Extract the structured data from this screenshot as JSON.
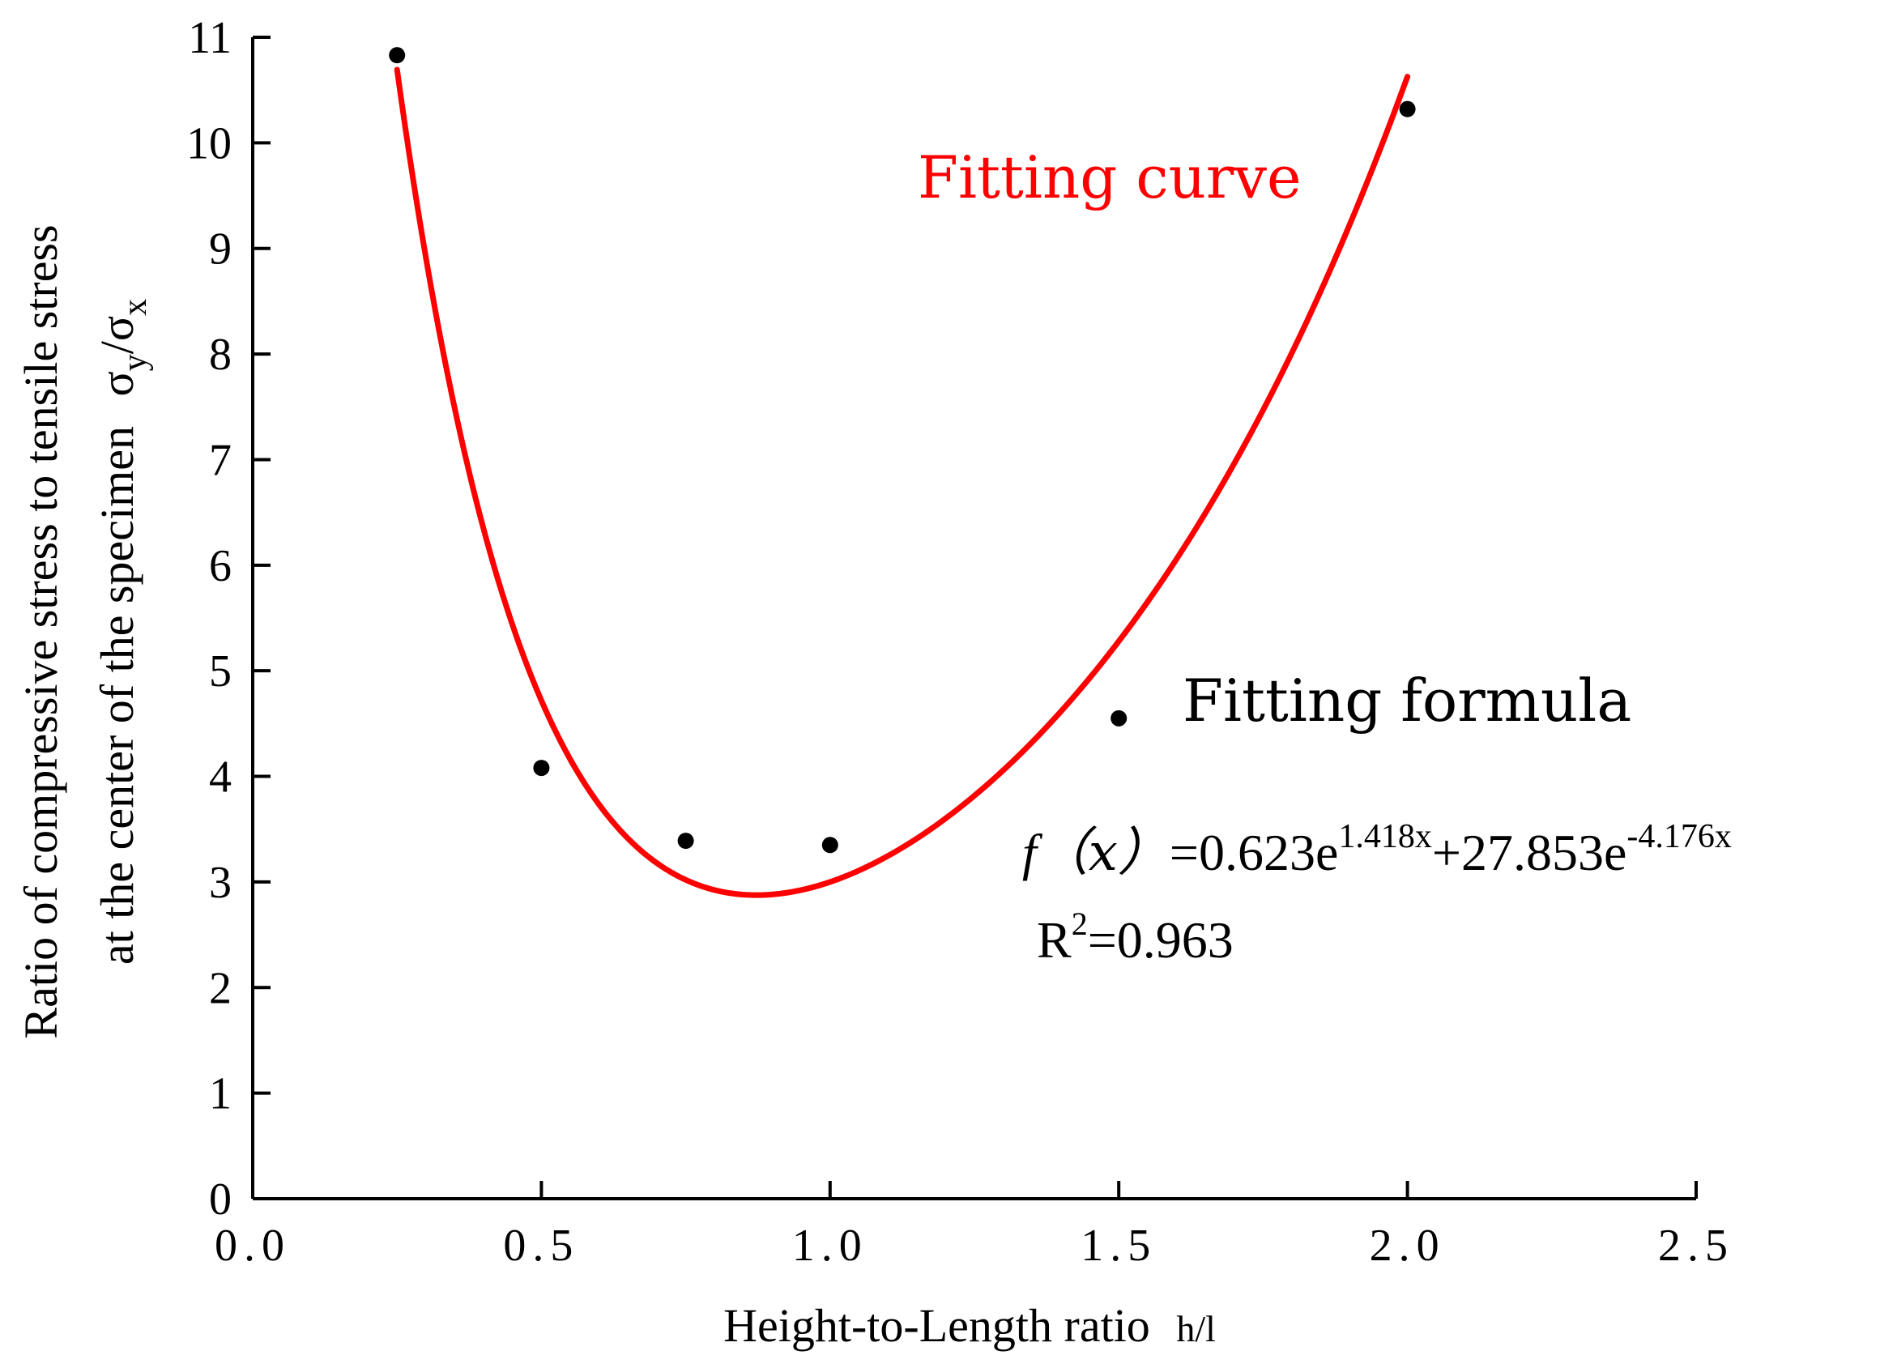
{
  "chart_data": {
    "type": "scatter",
    "title": "",
    "xlabel": "Height-to-Length ratio",
    "xlabel_unit": "h/l",
    "ylabel_line1": "Ratio of compressive stress to tensile stress",
    "ylabel_line2": "at the center of the specimen",
    "ylabel_symbol": {
      "base1": "σ",
      "sub1": "y",
      "slash": "/",
      "base2": "σ",
      "sub2": "x"
    },
    "xlim": [
      0,
      2.5
    ],
    "ylim": [
      0,
      11
    ],
    "x_ticks": [
      0,
      0.5,
      1.0,
      1.5,
      2.0,
      2.5
    ],
    "x_tick_labels": [
      "0.0",
      "0.5",
      "1.0",
      "1.5",
      "2.0",
      "2.5"
    ],
    "y_ticks": [
      0,
      1,
      2,
      3,
      4,
      5,
      6,
      7,
      8,
      9,
      10,
      11
    ],
    "y_tick_labels": [
      "0",
      "1",
      "2",
      "3",
      "4",
      "5",
      "6",
      "7",
      "8",
      "9",
      "10",
      "11"
    ],
    "grid": false,
    "series": [
      {
        "name": "Fitting formula",
        "kind": "scatter",
        "color": "#000000",
        "points": [
          {
            "x": 0.25,
            "y": 10.83
          },
          {
            "x": 0.5,
            "y": 4.08
          },
          {
            "x": 0.75,
            "y": 3.39
          },
          {
            "x": 1.0,
            "y": 3.35
          },
          {
            "x": 1.5,
            "y": 4.55
          },
          {
            "x": 2.0,
            "y": 10.32
          }
        ]
      },
      {
        "name": "Fitting curve",
        "kind": "line",
        "color": "#ff0000",
        "formula_coefficients": {
          "a": 0.623,
          "b": 1.418,
          "c": 27.853,
          "d": -4.176
        },
        "x_range": [
          0.25,
          2.0
        ]
      }
    ],
    "annotations": {
      "fitting_curve_label": "Fitting curve",
      "fitting_formula_label": "Fitting formula",
      "formula": {
        "f": "f",
        "x_paren": "（x）",
        "eq_a": "=0.623e",
        "exp_a": "1.418x",
        "plus_c": "+27.853e",
        "exp_c": "-4.176x"
      },
      "r2": {
        "base": "R",
        "sup": "2",
        "value": "=0.963"
      }
    }
  }
}
